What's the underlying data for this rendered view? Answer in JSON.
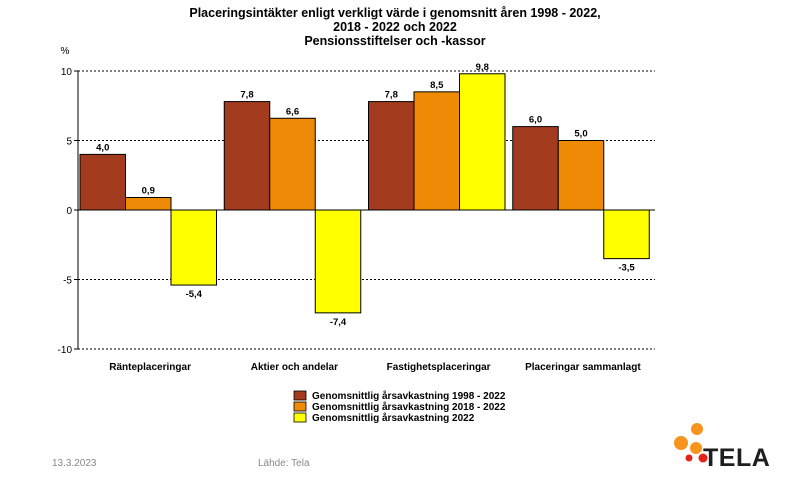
{
  "chart_data": {
    "type": "bar",
    "title": "Placeringsintäkter enligt verkligt värde i genomsnitt åren 1998 - 2022,",
    "title_line2": "2018 - 2022 och 2022",
    "subtitle": "Pensionsstiftelser och -kassor",
    "ylabel": "%",
    "ylim": [
      -10,
      10
    ],
    "yticks": [
      -10,
      -5,
      0,
      5,
      10
    ],
    "ytick_labels": [
      "-10",
      "-5",
      "0",
      "5",
      "10"
    ],
    "grid": true,
    "legend_position": "bottom-center",
    "categories": [
      "Ränteplaceringar",
      "Aktier och andelar",
      "Fastighetsplaceringar",
      "Placeringar sammanlagt"
    ],
    "series": [
      {
        "name": "Genomsnittlig årsavkastning 1998 - 2022",
        "color": "#a33b1e",
        "values": [
          4.0,
          7.8,
          7.8,
          6.0
        ],
        "labels": [
          "4,0",
          "7,8",
          "7,8",
          "6,0"
        ]
      },
      {
        "name": "Genomsnittlig årsavkastning 2018 - 2022",
        "color": "#ee8a06",
        "values": [
          0.9,
          6.6,
          8.5,
          5.0
        ],
        "labels": [
          "0,9",
          "6,6",
          "8,5",
          "5,0"
        ]
      },
      {
        "name": "Genomsnittlig årsavkastning 2022",
        "color": "#ffff00",
        "values": [
          -5.4,
          -7.4,
          9.8,
          -3.5
        ],
        "labels": [
          "-5,4",
          "-7,4",
          "9,8",
          "-3,5"
        ]
      }
    ]
  },
  "footer": {
    "date": "13.3.2023",
    "source": "Lähde: Tela"
  },
  "logo": {
    "text": "TELA",
    "colors": [
      "#f7941d",
      "#e2231a"
    ]
  }
}
